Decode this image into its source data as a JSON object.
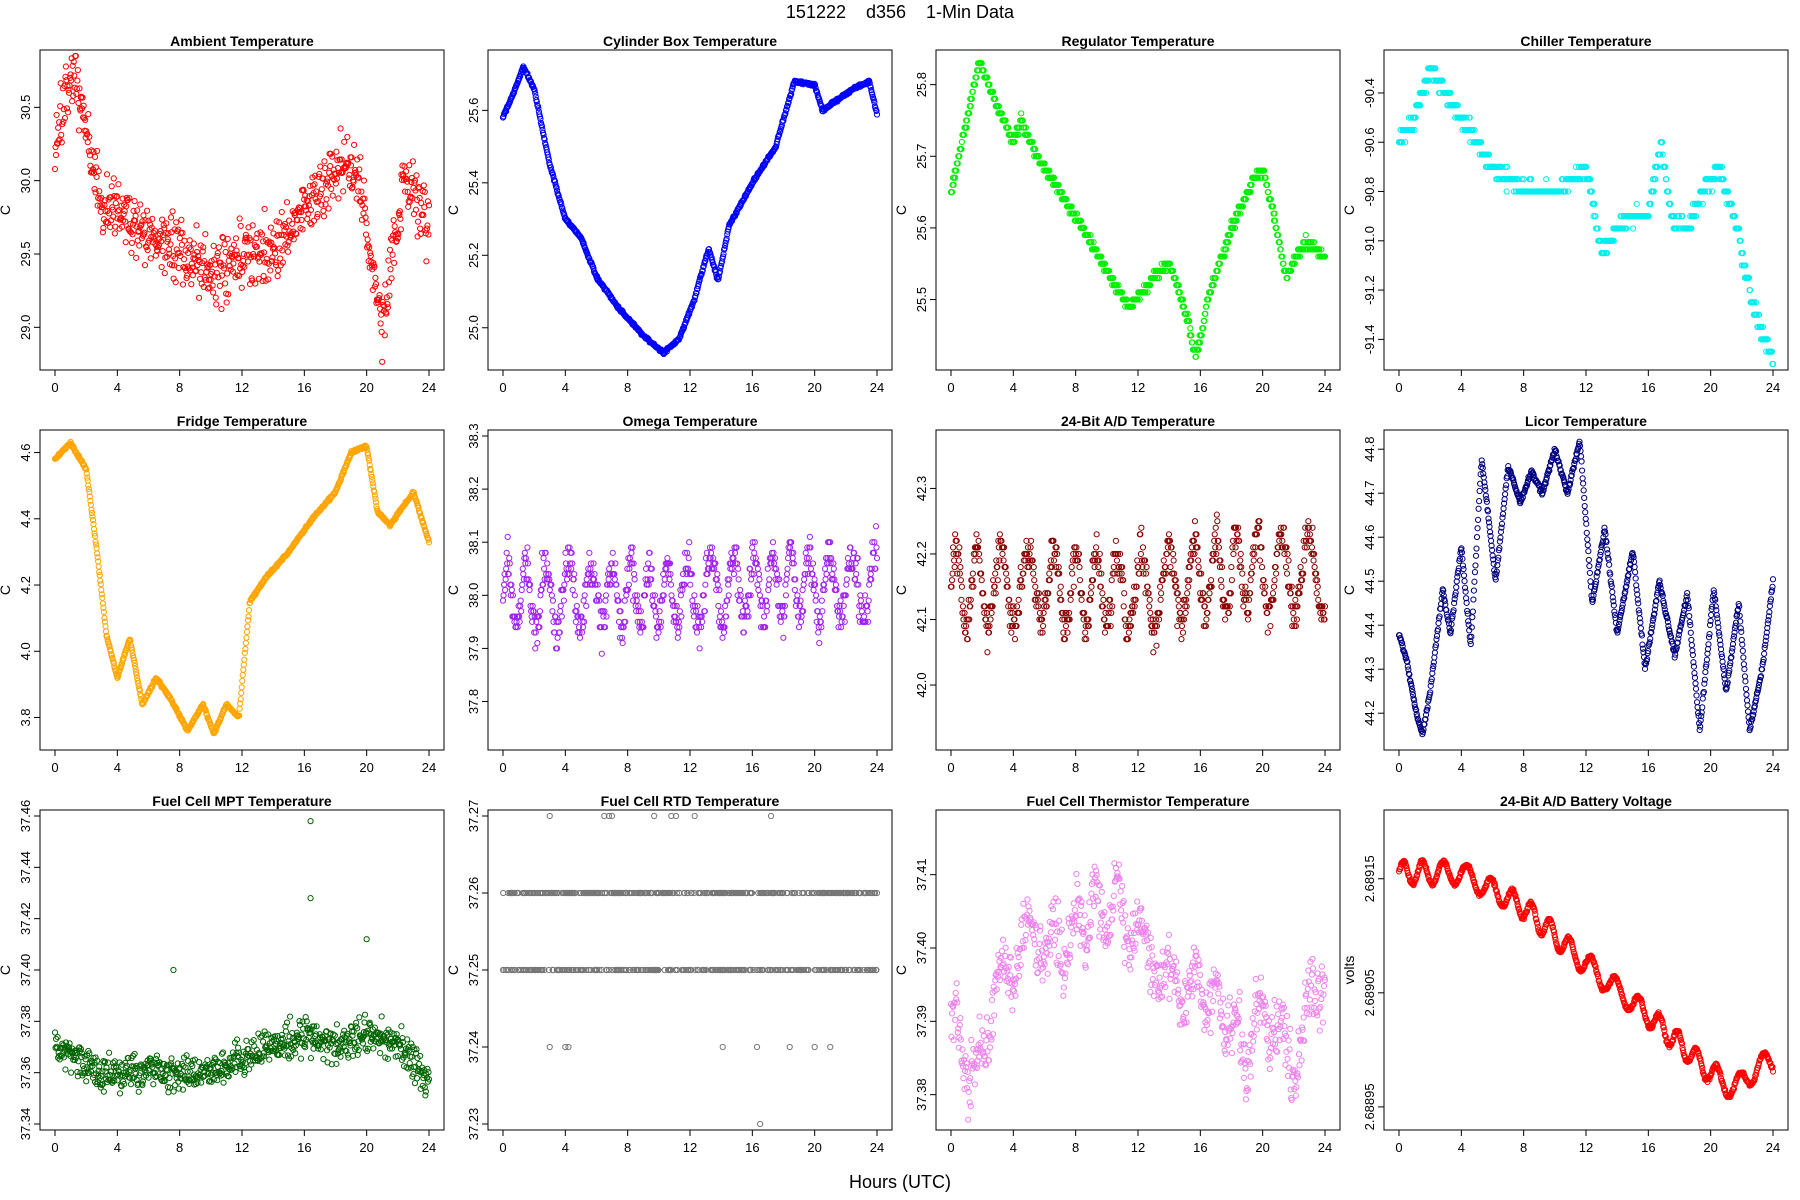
{
  "title": "151222    d356    1-Min Data",
  "xlabel": "Hours (UTC)",
  "chart_data": [
    {
      "type": "scatter",
      "title": "Ambient Temperature",
      "ylabel": "C",
      "color": "#ff0000",
      "ylim": [
        28.75,
        30.85
      ],
      "yticks": [
        "29.0",
        "29.5",
        "30.0",
        "30.5"
      ],
      "xlim": [
        0,
        24
      ],
      "xticks": [
        0,
        4,
        8,
        12,
        16,
        20,
        24
      ],
      "seed": 11,
      "noise": 0.22,
      "anchors": [
        [
          0,
          30.15
        ],
        [
          0.5,
          30.45
        ],
        [
          1.2,
          30.75
        ],
        [
          2,
          30.35
        ],
        [
          3,
          29.85
        ],
        [
          4,
          29.8
        ],
        [
          6,
          29.6
        ],
        [
          8,
          29.5
        ],
        [
          10,
          29.35
        ],
        [
          12,
          29.5
        ],
        [
          14,
          29.5
        ],
        [
          16,
          29.8
        ],
        [
          18,
          30.1
        ],
        [
          19.5,
          30.05
        ],
        [
          20.3,
          29.4
        ],
        [
          21,
          29.0
        ],
        [
          21.8,
          29.6
        ],
        [
          22.5,
          30.0
        ],
        [
          24,
          29.7
        ]
      ]
    },
    {
      "type": "scatter",
      "title": "Cylinder Box Temperature",
      "ylabel": "C",
      "color": "#0000ff",
      "ylim": [
        24.9,
        25.75
      ],
      "yticks": [
        "25.0",
        "25.2",
        "25.4",
        "25.6"
      ],
      "xlim": [
        0,
        24
      ],
      "xticks": [
        0,
        4,
        8,
        12,
        16,
        20,
        24
      ],
      "seed": 12,
      "noise": 0.004,
      "anchors": [
        [
          0,
          25.58
        ],
        [
          0.7,
          25.65
        ],
        [
          1.3,
          25.72
        ],
        [
          2,
          25.66
        ],
        [
          3,
          25.45
        ],
        [
          4,
          25.3
        ],
        [
          5,
          25.25
        ],
        [
          6,
          25.14
        ],
        [
          7.5,
          25.05
        ],
        [
          9,
          24.98
        ],
        [
          10.3,
          24.93
        ],
        [
          11.3,
          24.97
        ],
        [
          12.3,
          25.08
        ],
        [
          13.2,
          25.22
        ],
        [
          13.8,
          25.13
        ],
        [
          14.5,
          25.28
        ],
        [
          16,
          25.4
        ],
        [
          17.5,
          25.5
        ],
        [
          18.7,
          25.68
        ],
        [
          20,
          25.67
        ],
        [
          20.5,
          25.6
        ],
        [
          21.5,
          25.63
        ],
        [
          22.5,
          25.66
        ],
        [
          23.5,
          25.68
        ],
        [
          24,
          25.59
        ]
      ]
    },
    {
      "type": "scatter",
      "title": "Regulator Temperature",
      "ylabel": "C",
      "color": "#00ee00",
      "ylim": [
        25.41,
        25.84
      ],
      "yticks": [
        "25.5",
        "25.6",
        "25.7",
        "25.8"
      ],
      "xlim": [
        0,
        24
      ],
      "xticks": [
        0,
        4,
        8,
        12,
        16,
        20,
        24
      ],
      "seed": 13,
      "noise": 0.006,
      "quant": 0.01,
      "anchors": [
        [
          0,
          25.65
        ],
        [
          1.8,
          25.83
        ],
        [
          3,
          25.77
        ],
        [
          4,
          25.72
        ],
        [
          4.5,
          25.75
        ],
        [
          5.5,
          25.7
        ],
        [
          7,
          25.65
        ],
        [
          9,
          25.58
        ],
        [
          10.5,
          25.52
        ],
        [
          11.5,
          25.49
        ],
        [
          13,
          25.53
        ],
        [
          14,
          25.55
        ],
        [
          14.5,
          25.52
        ],
        [
          15.2,
          25.47
        ],
        [
          15.7,
          25.42
        ],
        [
          16.5,
          25.5
        ],
        [
          18,
          25.6
        ],
        [
          19.5,
          25.67
        ],
        [
          20,
          25.68
        ],
        [
          20.7,
          25.62
        ],
        [
          21.5,
          25.53
        ],
        [
          22.7,
          25.58
        ],
        [
          24,
          25.56
        ]
      ]
    },
    {
      "type": "scatter",
      "title": "Chiller Temperature",
      "ylabel": "C",
      "color": "#00eeee",
      "ylim": [
        -91.5,
        -90.25
      ],
      "yticks": [
        "-90.4",
        "-90.6",
        "-90.8",
        "-91.0",
        "-91.2",
        "-91.4"
      ],
      "xlim": [
        0,
        24
      ],
      "xticks": [
        0,
        4,
        8,
        12,
        16,
        20,
        24
      ],
      "seed": 14,
      "noise": 0.03,
      "quant": 0.05,
      "anchors": [
        [
          0,
          -90.6
        ],
        [
          1,
          -90.5
        ],
        [
          1.5,
          -90.4
        ],
        [
          2,
          -90.3
        ],
        [
          3,
          -90.4
        ],
        [
          4,
          -90.5
        ],
        [
          5,
          -90.6
        ],
        [
          6,
          -90.7
        ],
        [
          7,
          -90.75
        ],
        [
          8,
          -90.8
        ],
        [
          10,
          -90.8
        ],
        [
          12,
          -90.7
        ],
        [
          13,
          -91.05
        ],
        [
          14,
          -90.95
        ],
        [
          15,
          -90.9
        ],
        [
          16,
          -90.9
        ],
        [
          16.8,
          -90.6
        ],
        [
          17.5,
          -90.9
        ],
        [
          18.5,
          -90.95
        ],
        [
          19.5,
          -90.8
        ],
        [
          20.5,
          -90.7
        ],
        [
          21.5,
          -90.9
        ],
        [
          22,
          -91.05
        ],
        [
          22.7,
          -91.25
        ],
        [
          23.4,
          -91.4
        ],
        [
          24,
          -91.48
        ]
      ]
    },
    {
      "type": "scatter",
      "title": "Fridge Temperature",
      "ylabel": "C",
      "color": "#ffa500",
      "ylim": [
        3.72,
        4.65
      ],
      "yticks": [
        "3.8",
        "4.0",
        "4.2",
        "4.4",
        "4.6"
      ],
      "xlim": [
        0,
        24
      ],
      "xticks": [
        0,
        4,
        8,
        12,
        16,
        20,
        24
      ],
      "seed": 15,
      "noise": 0.004,
      "anchors": [
        [
          0,
          4.58
        ],
        [
          1,
          4.63
        ],
        [
          2,
          4.55
        ],
        [
          2.7,
          4.3
        ],
        [
          3.3,
          4.05
        ],
        [
          4,
          3.92
        ],
        [
          4.8,
          4.04
        ],
        [
          5.6,
          3.84
        ],
        [
          6.5,
          3.92
        ],
        [
          7.5,
          3.85
        ],
        [
          8.5,
          3.76
        ],
        [
          9.5,
          3.84
        ],
        [
          10.2,
          3.75
        ],
        [
          11,
          3.84
        ],
        [
          11.8,
          3.8
        ],
        [
          12.5,
          4.15
        ],
        [
          13.5,
          4.22
        ],
        [
          15,
          4.3
        ],
        [
          16.5,
          4.4
        ],
        [
          18,
          4.48
        ],
        [
          19,
          4.6
        ],
        [
          20,
          4.62
        ],
        [
          20.7,
          4.42
        ],
        [
          21.5,
          4.38
        ],
        [
          23,
          4.48
        ],
        [
          24,
          4.33
        ]
      ]
    },
    {
      "type": "scatter",
      "title": "Omega Temperature",
      "ylabel": "C",
      "color": "#a020f0",
      "ylim": [
        37.72,
        38.3
      ],
      "yticks": [
        "37.8",
        "37.9",
        "38.0",
        "38.1",
        "38.2",
        "38.3"
      ],
      "xlim": [
        0,
        24
      ],
      "xticks": [
        0,
        4,
        8,
        12,
        16,
        20,
        24
      ],
      "seed": 16,
      "noise": 0.04,
      "quant": 0.01,
      "osc": 0.12,
      "period": 1.3,
      "anchors": [
        [
          0,
          38.0
        ],
        [
          6,
          38.0
        ],
        [
          12,
          38.0
        ],
        [
          18,
          38.02
        ],
        [
          24,
          38.02
        ]
      ]
    },
    {
      "type": "scatter",
      "title": "24-Bit A/D Temperature",
      "ylabel": "C",
      "color": "#8b0000",
      "ylim": [
        41.91,
        42.38
      ],
      "yticks": [
        "42.0",
        "42.1",
        "42.2",
        "42.3"
      ],
      "xlim": [
        0,
        24
      ],
      "xticks": [
        0,
        4,
        8,
        12,
        16,
        20,
        24
      ],
      "seed": 17,
      "noise": 0.03,
      "quant": 0.01,
      "osc": 0.12,
      "period": 1.5,
      "anchors": [
        [
          0,
          42.15
        ],
        [
          6,
          42.15
        ],
        [
          12,
          42.14
        ],
        [
          18,
          42.17
        ],
        [
          24,
          42.17
        ]
      ]
    },
    {
      "type": "scatter",
      "title": "Licor Temperature",
      "ylabel": "C",
      "color": "#000080",
      "ylim": [
        44.13,
        44.83
      ],
      "yticks": [
        "44.2",
        "44.3",
        "44.4",
        "44.5",
        "44.6",
        "44.7",
        "44.8"
      ],
      "xlim": [
        0,
        24
      ],
      "xticks": [
        0,
        4,
        8,
        12,
        16,
        20,
        24
      ],
      "seed": 18,
      "noise": 0.005,
      "anchors": [
        [
          0,
          44.38
        ],
        [
          0.5,
          44.32
        ],
        [
          1,
          44.22
        ],
        [
          1.5,
          44.15
        ],
        [
          2,
          44.25
        ],
        [
          2.8,
          44.48
        ],
        [
          3.3,
          44.38
        ],
        [
          4,
          44.58
        ],
        [
          4.6,
          44.35
        ],
        [
          5.3,
          44.78
        ],
        [
          6.2,
          44.5
        ],
        [
          7,
          44.76
        ],
        [
          7.8,
          44.68
        ],
        [
          8.5,
          44.75
        ],
        [
          9.2,
          44.7
        ],
        [
          10,
          44.8
        ],
        [
          10.8,
          44.7
        ],
        [
          11.6,
          44.82
        ],
        [
          12.4,
          44.45
        ],
        [
          13.2,
          44.62
        ],
        [
          14,
          44.38
        ],
        [
          15,
          44.57
        ],
        [
          15.8,
          44.3
        ],
        [
          16.7,
          44.5
        ],
        [
          17.7,
          44.33
        ],
        [
          18.5,
          44.47
        ],
        [
          19.3,
          44.16
        ],
        [
          20.2,
          44.48
        ],
        [
          21,
          44.25
        ],
        [
          21.8,
          44.45
        ],
        [
          22.5,
          44.16
        ],
        [
          23.3,
          44.3
        ],
        [
          24,
          44.5
        ]
      ]
    },
    {
      "type": "scatter",
      "title": "Fuel Cell MPT Temperature",
      "ylabel": "C",
      "color": "#006400",
      "ylim": [
        37.34,
        37.46
      ],
      "yticks": [
        "37.34",
        "37.36",
        "37.38",
        "37.40",
        "37.42",
        "37.44",
        "37.46"
      ],
      "xlim": [
        0,
        24
      ],
      "xticks": [
        0,
        4,
        8,
        12,
        16,
        20,
        24
      ],
      "seed": 19,
      "noise": 0.007,
      "anchors": [
        [
          0,
          37.37
        ],
        [
          3,
          37.36
        ],
        [
          6,
          37.36
        ],
        [
          9,
          37.36
        ],
        [
          12,
          37.365
        ],
        [
          14,
          37.37
        ],
        [
          16,
          37.375
        ],
        [
          18,
          37.37
        ],
        [
          20,
          37.375
        ],
        [
          22,
          37.37
        ],
        [
          24,
          37.358
        ]
      ],
      "extras": [
        [
          16.4,
          37.458
        ],
        [
          16.4,
          37.428
        ],
        [
          20,
          37.412
        ],
        [
          7.6,
          37.4
        ]
      ]
    },
    {
      "type": "levels",
      "title": "Fuel Cell RTD Temperature",
      "ylabel": "C",
      "color": "#777777",
      "ylim": [
        37.23,
        37.27
      ],
      "yticks": [
        "37.23",
        "37.24",
        "37.25",
        "37.26",
        "37.27"
      ],
      "xlim": [
        0,
        24
      ],
      "xticks": [
        0,
        4,
        8,
        12,
        16,
        20,
        24
      ],
      "seed": 20,
      "levels": [
        37.26,
        37.25
      ],
      "extras": [
        [
          3,
          37.27
        ],
        [
          6.5,
          37.27
        ],
        [
          6.8,
          37.27
        ],
        [
          7,
          37.27
        ],
        [
          9.7,
          37.27
        ],
        [
          10.8,
          37.27
        ],
        [
          11.1,
          37.27
        ],
        [
          12.3,
          37.27
        ],
        [
          17.2,
          37.27
        ],
        [
          3,
          37.24
        ],
        [
          4,
          37.24
        ],
        [
          4.2,
          37.24
        ],
        [
          14.1,
          37.24
        ],
        [
          16.3,
          37.24
        ],
        [
          18.4,
          37.24
        ],
        [
          20,
          37.24
        ],
        [
          21,
          37.24
        ],
        [
          16.5,
          37.23
        ]
      ]
    },
    {
      "type": "scatter",
      "title": "Fuel Cell Thermistor Temperature",
      "ylabel": "C",
      "color": "#ee82ee",
      "ylim": [
        37.376,
        37.418
      ],
      "yticks": [
        "37.38",
        "37.39",
        "37.40",
        "37.41"
      ],
      "xlim": [
        0,
        24
      ],
      "xticks": [
        0,
        4,
        8,
        12,
        16,
        20,
        24
      ],
      "seed": 21,
      "noise": 0.004,
      "osc": 0.006,
      "period": 1.5,
      "anchors": [
        [
          0,
          37.39
        ],
        [
          1.5,
          37.382
        ],
        [
          3,
          37.395
        ],
        [
          5,
          37.402
        ],
        [
          7,
          37.4
        ],
        [
          9,
          37.405
        ],
        [
          10.5,
          37.406
        ],
        [
          12,
          37.402
        ],
        [
          14,
          37.395
        ],
        [
          16,
          37.395
        ],
        [
          18,
          37.39
        ],
        [
          19,
          37.385
        ],
        [
          20,
          37.392
        ],
        [
          22,
          37.385
        ],
        [
          24,
          37.398
        ]
      ]
    },
    {
      "type": "scatter",
      "title": "24-Bit A/D Battery Voltage",
      "ylabel": "volts",
      "color": "#ff0000",
      "ylim": [
        2.688935,
        2.689205
      ],
      "yticks": [
        "2.68895",
        "2.68905",
        "2.68915"
      ],
      "xlim": [
        0,
        24
      ],
      "xticks": [
        0,
        4,
        8,
        12,
        16,
        20,
        24
      ],
      "seed": 22,
      "noise": 1.5e-06,
      "osc": 2e-05,
      "period": 1.35,
      "anchors": [
        [
          0,
          2.689155
        ],
        [
          4,
          2.689155
        ],
        [
          8,
          2.689125
        ],
        [
          12,
          2.689075
        ],
        [
          16,
          2.68903
        ],
        [
          20,
          2.68898
        ],
        [
          21.5,
          2.688965
        ],
        [
          23,
          2.688985
        ],
        [
          24,
          2.68899
        ]
      ]
    }
  ]
}
